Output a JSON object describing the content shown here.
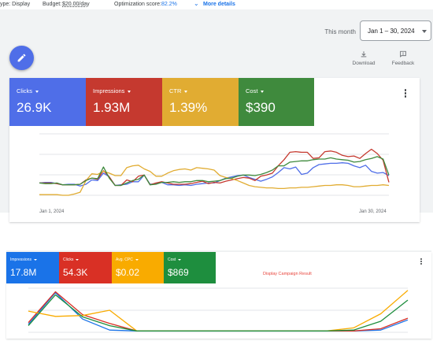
{
  "topbar": {
    "type_text": "ype: Display",
    "budget_label": "Budget:",
    "budget_value": "$20.00/day",
    "optimization_label": "Optimization score:",
    "optimization_value": "82.2%",
    "more_details": "More details"
  },
  "date_range": {
    "preset": "This month",
    "value": "Jan 1 – 30, 2024"
  },
  "toolbar": {
    "download": "Download",
    "feedback": "Feedback"
  },
  "top_panel": {
    "tiles": [
      {
        "label": "Clicks",
        "value": "26.9K",
        "color": "#4f6ee8"
      },
      {
        "label": "Impressions",
        "value": "1.93M",
        "color": "#c5392f"
      },
      {
        "label": "CTR",
        "value": "1.39%",
        "color": "#e1ac32"
      },
      {
        "label": "Cost",
        "value": "$390",
        "color": "#3f8a3d"
      }
    ],
    "x_start": "Jan 1, 2024",
    "x_end": "Jan 30, 2024"
  },
  "bottom_panel": {
    "tiles": [
      {
        "label": "Impressions",
        "value": "17.8M",
        "color": "#1a73e8"
      },
      {
        "label": "Clicks",
        "value": "54.3K",
        "color": "#d93025"
      },
      {
        "label": "Avg. CPC",
        "value": "$0.02",
        "color": "#f9ab00"
      },
      {
        "label": "Cost",
        "value": "$869",
        "color": "#1e8e3e"
      }
    ],
    "note": "Display Campaign Result"
  },
  "chart_data": [
    {
      "type": "line",
      "x_labels": [
        "Jan 1, 2024",
        "Jan 30, 2024"
      ],
      "ylim": [
        0,
        100
      ],
      "grid": true,
      "series": [
        {
          "color": "#4f6ee8",
          "values": [
            20,
            21,
            21,
            19,
            17,
            18,
            18,
            15,
            18,
            25,
            24,
            36,
            30,
            16,
            17,
            18,
            22,
            22,
            33,
            18,
            19,
            21,
            17,
            17,
            16,
            17,
            16,
            18,
            19,
            20,
            20,
            24,
            28,
            30,
            32,
            33,
            29,
            26,
            23,
            26,
            30,
            37,
            45,
            43,
            46,
            34,
            36,
            45,
            50,
            51,
            52,
            52,
            53,
            52,
            48,
            45,
            49,
            39,
            36,
            37,
            32
          ]
        },
        {
          "color": "#c5392f",
          "values": [
            20,
            20,
            20,
            19,
            17,
            17,
            17,
            18,
            25,
            28,
            26,
            40,
            30,
            16,
            16,
            25,
            22,
            31,
            33,
            17,
            20,
            22,
            20,
            18,
            18,
            18,
            19,
            21,
            23,
            19,
            21,
            20,
            23,
            25,
            27,
            29,
            28,
            24,
            31,
            33,
            36,
            48,
            58,
            70,
            71,
            70,
            70,
            60,
            61,
            71,
            72,
            70,
            65,
            63,
            64,
            60,
            68,
            75,
            68,
            57,
            21
          ]
        },
        {
          "color": "#e1ac32",
          "values": [
            1,
            1,
            1,
            1,
            0,
            0,
            2,
            5,
            24,
            35,
            34,
            39,
            36,
            32,
            32,
            45,
            48,
            49,
            43,
            39,
            31,
            31,
            36,
            40,
            42,
            43,
            41,
            45,
            44,
            43,
            41,
            32,
            29,
            27,
            24,
            20,
            16,
            14,
            13,
            12,
            12,
            11,
            11,
            12,
            12,
            13,
            13,
            14,
            15,
            16,
            16,
            17,
            17,
            16,
            14,
            14,
            15,
            16,
            16,
            17,
            16
          ]
        },
        {
          "color": "#3f8a3d",
          "values": [
            20,
            19,
            19,
            20,
            17,
            17,
            17,
            18,
            24,
            28,
            27,
            46,
            28,
            16,
            16,
            20,
            24,
            26,
            33,
            17,
            18,
            21,
            21,
            22,
            21,
            22,
            22,
            24,
            24,
            22,
            23,
            24,
            27,
            28,
            31,
            33,
            33,
            32,
            34,
            37,
            41,
            48,
            48,
            54,
            55,
            56,
            56,
            58,
            59,
            59,
            61,
            59,
            58,
            57,
            54,
            55,
            58,
            60,
            63,
            59,
            33
          ]
        }
      ]
    },
    {
      "type": "line",
      "ylim": [
        0,
        100
      ],
      "grid": true,
      "series": [
        {
          "color": "#1a73e8",
          "values": [
            18,
            90,
            30,
            5,
            3,
            3,
            3,
            3,
            3,
            3,
            3,
            3,
            3,
            5,
            28
          ]
        },
        {
          "color": "#d93025",
          "values": [
            22,
            92,
            40,
            20,
            3,
            3,
            3,
            3,
            3,
            3,
            3,
            3,
            3,
            8,
            32
          ]
        },
        {
          "color": "#f9ab00",
          "values": [
            48,
            36,
            38,
            50,
            3,
            3,
            3,
            3,
            3,
            3,
            3,
            3,
            10,
            42,
            95
          ]
        },
        {
          "color": "#1e8e3e",
          "values": [
            15,
            85,
            35,
            15,
            3,
            3,
            3,
            3,
            3,
            3,
            3,
            3,
            5,
            25,
            73
          ]
        }
      ]
    }
  ]
}
